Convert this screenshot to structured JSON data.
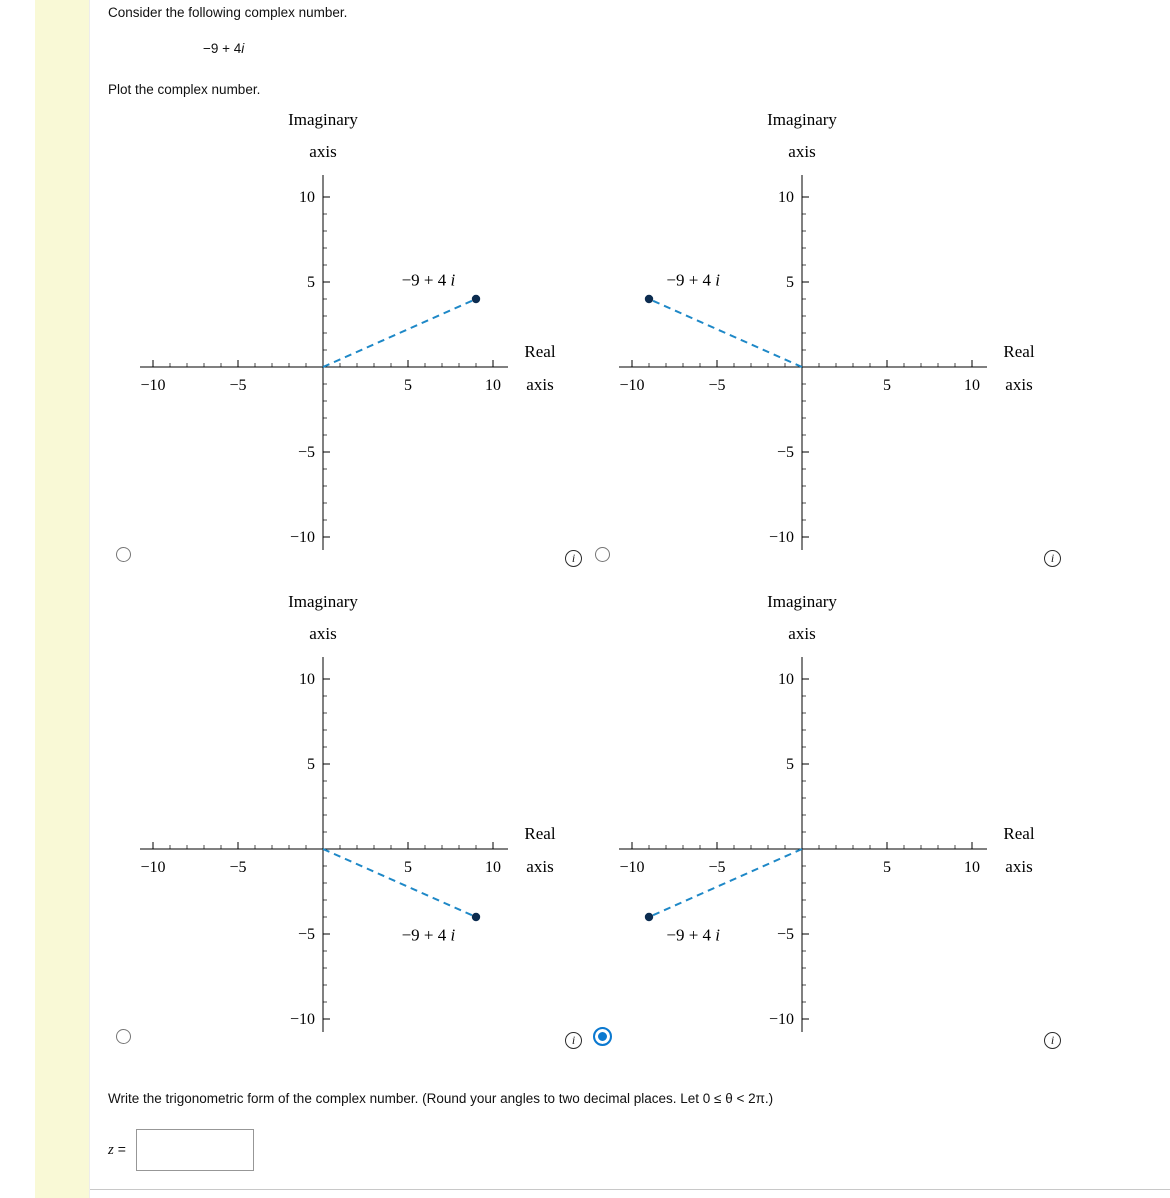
{
  "page": {
    "background": "#ffffff",
    "strip_color": "#f9f9d6"
  },
  "question": {
    "intro": "Consider the following complex number.",
    "complex_number": {
      "prefix": "−9 + 4",
      "italic": "i"
    },
    "plot_prompt": "Plot the complex number.",
    "trig_prompt": "Write the trigonometric form of the complex number. (Round your angles to two decimal places. Let 0 ≤ θ < 2π.)",
    "answer_var": "z",
    "answer_eq": "=",
    "answer_value": ""
  },
  "icons": {
    "info": "i"
  },
  "radio": {
    "selected_color": "#0b79d0"
  },
  "chart_data": {
    "type": "scatter",
    "description": "Four candidate Argand-plane plots of the complex number −9 + 4i; each shows one point joined to the origin by a dashed blue segment",
    "axes": {
      "y_title_lines": [
        "Imaginary",
        "axis"
      ],
      "x_title_lines": [
        "Real",
        "axis"
      ],
      "xlim": [
        -10,
        10
      ],
      "ylim": [
        -10,
        10
      ],
      "minor_tick_step": 1,
      "xticks": [
        {
          "v": -10,
          "label": "−10"
        },
        {
          "v": -5,
          "label": "−5"
        },
        {
          "v": 5,
          "label": "5"
        },
        {
          "v": 10,
          "label": "10"
        }
      ],
      "yticks": [
        {
          "v": 10,
          "label": "10"
        },
        {
          "v": 5,
          "label": "5"
        },
        {
          "v": -5,
          "label": "−5"
        },
        {
          "v": -10,
          "label": "−10"
        }
      ]
    },
    "point_label": {
      "prefix": "−9 + 4 ",
      "italic": "i"
    },
    "options": [
      {
        "name": "top-left",
        "point": {
          "re": 9,
          "im": 4
        },
        "label_at": {
          "x": 6.2,
          "y": 5.1
        },
        "selected": false
      },
      {
        "name": "top-right",
        "point": {
          "re": -9,
          "im": 4
        },
        "label_at": {
          "x": -6.4,
          "y": 5.1
        },
        "selected": false
      },
      {
        "name": "bottom-left",
        "point": {
          "re": 9,
          "im": -4
        },
        "label_at": {
          "x": 6.2,
          "y": -5.1
        },
        "selected": false
      },
      {
        "name": "bottom-right",
        "point": {
          "re": -9,
          "im": -4
        },
        "label_at": {
          "x": -6.4,
          "y": -5.1
        },
        "selected": true
      }
    ],
    "style": {
      "line_color": "#1e88c7",
      "point_color": "#0c2c50",
      "axis_color": "#000000",
      "dash": "7 5"
    }
  }
}
